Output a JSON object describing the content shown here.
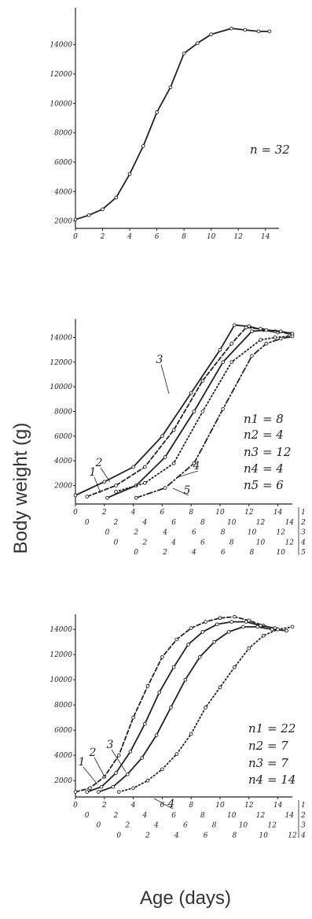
{
  "figure": {
    "ylabel": "Body weight (g)",
    "xlabel": "Age (days)"
  },
  "chart_data": [
    {
      "type": "line",
      "title": "",
      "xlabel": "",
      "ylabel": "",
      "xlim": [
        0,
        15
      ],
      "ylim": [
        1500,
        16500
      ],
      "x_ticks": [
        "0",
        "2",
        "4",
        "6",
        "8",
        "10",
        "12",
        "14"
      ],
      "y_ticks": [
        "2000",
        "4000",
        "6000",
        "8000",
        "10000",
        "12000",
        "14000"
      ],
      "x_offsets": [
        [
          0,
          0
        ]
      ],
      "annotations": [
        "n = 32"
      ],
      "series": [
        {
          "label": "",
          "style": "solid",
          "x": [
            0,
            1,
            2,
            3,
            4,
            5,
            6,
            7,
            8,
            9,
            10,
            11.5,
            12.5,
            13.5,
            14.3
          ],
          "y": [
            2100,
            2400,
            2800,
            3600,
            5200,
            7100,
            9400,
            11100,
            13400,
            14100,
            14700,
            15100,
            15000,
            14900,
            14900
          ]
        }
      ]
    },
    {
      "type": "line",
      "title": "",
      "xlabel": "",
      "ylabel": "",
      "xlim": [
        0,
        15
      ],
      "ylim": [
        500,
        15500
      ],
      "x_ticks": [
        "0",
        "2",
        "4",
        "6",
        "8",
        "10",
        "12",
        "14"
      ],
      "y_ticks": [
        "2000",
        "4000",
        "6000",
        "8000",
        "10000",
        "12000",
        "14000"
      ],
      "x_offsets": [
        [
          0,
          0
        ],
        [
          0.8,
          15
        ],
        [
          2.2,
          30
        ],
        [
          2.8,
          45
        ],
        [
          4.2,
          60
        ]
      ],
      "legend_keys": [
        "1",
        "2",
        "3",
        "4",
        "5"
      ],
      "annotations": [
        "n1 = 8",
        "n2 = 4",
        "n3 = 12",
        "n4 = 4",
        "n5 = 6"
      ],
      "series": [
        {
          "label": "1",
          "style": "solid",
          "x": [
            0,
            2,
            4,
            6,
            8,
            10,
            11,
            12,
            13,
            14
          ],
          "y": [
            1200,
            2300,
            3500,
            6000,
            9500,
            13000,
            15000,
            14900,
            14600,
            14400
          ]
        },
        {
          "label": "2",
          "style": "dashed",
          "x": [
            0.8,
            2.8,
            4.8,
            6.8,
            8.8,
            10.8,
            11.8,
            12.8,
            13.8,
            14.8
          ],
          "y": [
            1100,
            2000,
            3500,
            6500,
            10500,
            13500,
            14800,
            14700,
            14500,
            14300
          ]
        },
        {
          "label": "3",
          "style": "solid",
          "x": [
            2.2,
            4.2,
            6.2,
            8.2,
            10.2,
            12.2,
            13.2,
            14.2,
            15
          ],
          "y": [
            1000,
            2000,
            4300,
            8000,
            12000,
            14500,
            14600,
            14500,
            14300
          ]
        },
        {
          "label": "4",
          "style": "dotted",
          "x": [
            2.8,
            4.8,
            6.8,
            8.8,
            10.8,
            12.8,
            13.8,
            14.8
          ],
          "y": [
            1500,
            2200,
            3800,
            8000,
            12000,
            13800,
            14000,
            14100
          ]
        },
        {
          "label": "5",
          "style": "dashdot",
          "x": [
            4.2,
            6.2,
            8.2,
            10.2,
            12.2,
            13.2,
            14.2,
            15
          ],
          "y": [
            1000,
            1800,
            3800,
            8200,
            12500,
            13500,
            13900,
            14100
          ]
        }
      ]
    },
    {
      "type": "line",
      "title": "",
      "xlabel": "",
      "ylabel": "",
      "xlim": [
        0,
        15
      ],
      "ylim": [
        700,
        15200
      ],
      "x_ticks": [
        "0",
        "2",
        "4",
        "6",
        "8",
        "10",
        "12",
        "14"
      ],
      "y_ticks": [
        "2000",
        "4000",
        "6000",
        "8000",
        "10000",
        "12000",
        "14000"
      ],
      "x_offsets": [
        [
          0,
          0
        ],
        [
          0.8,
          15
        ],
        [
          1.6,
          30
        ],
        [
          3,
          45
        ]
      ],
      "legend_keys": [
        "1",
        "2",
        "3",
        "4"
      ],
      "annotations": [
        "n1 = 22",
        "n2 = 7",
        "n3 = 7",
        "n4 = 14"
      ],
      "series": [
        {
          "label": "1",
          "style": "dashed",
          "x": [
            0,
            1,
            2,
            3,
            4,
            5,
            6,
            7,
            8,
            9,
            10,
            11,
            12,
            13,
            14
          ],
          "y": [
            1100,
            1400,
            2300,
            4000,
            7000,
            9500,
            11800,
            13200,
            14100,
            14600,
            14900,
            15000,
            14700,
            14300,
            14000
          ]
        },
        {
          "label": "2",
          "style": "solid",
          "x": [
            0.8,
            1.8,
            2.8,
            3.8,
            4.8,
            5.8,
            6.8,
            7.8,
            8.8,
            9.8,
            10.8,
            11.8,
            12.8,
            13.8
          ],
          "y": [
            1100,
            1500,
            2600,
            4300,
            6500,
            9000,
            11000,
            12800,
            13800,
            14400,
            14600,
            14600,
            14300,
            14100
          ]
        },
        {
          "label": "3",
          "style": "solid",
          "x": [
            1.6,
            2.6,
            3.6,
            4.6,
            5.6,
            6.6,
            7.6,
            8.6,
            9.6,
            10.6,
            11.6,
            12.6,
            13.6,
            14.6
          ],
          "y": [
            1100,
            1500,
            2500,
            3800,
            5600,
            7800,
            10000,
            11800,
            13000,
            13800,
            14200,
            14200,
            14000,
            13900
          ]
        },
        {
          "label": "4",
          "style": "dotted",
          "x": [
            3,
            4,
            5,
            6,
            7,
            8,
            9,
            10,
            11,
            12,
            13,
            14,
            15
          ],
          "y": [
            1100,
            1400,
            2000,
            2900,
            4100,
            5700,
            7800,
            9400,
            11000,
            12500,
            13500,
            14000,
            14200
          ]
        }
      ]
    }
  ]
}
